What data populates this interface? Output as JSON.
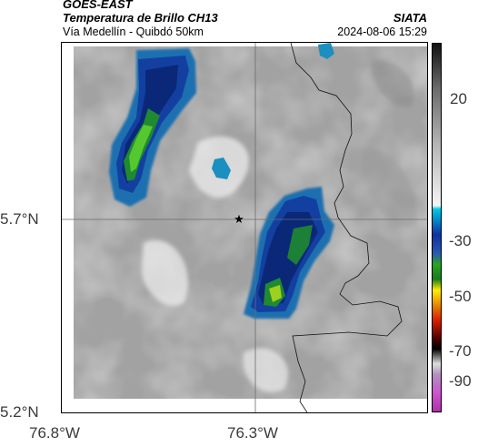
{
  "header": {
    "source": "GOES-EAST",
    "product": "Temperatura de Brillo CH13",
    "organization": "SIATA",
    "region": "Vía Medellín - Quibdó 50km",
    "datetime": "2024-08-06 15:29"
  },
  "map": {
    "lat_ticks": [
      "5.7°N",
      "5.2°N"
    ],
    "lon_ticks": [
      "76.8°W",
      "76.3°W"
    ],
    "marker": "station-star",
    "grid": true
  },
  "colorbar": {
    "ticks": [
      "20",
      "-30",
      "-50",
      "-70",
      "-90"
    ],
    "colors": {
      "warm_top": "#111111",
      "warm_bottom": "#f5f5f5",
      "cyan": "#00c8e6",
      "blue": "#1030a0",
      "green": "#2aa520",
      "yellow": "#ffee00",
      "red": "#dd2200",
      "black": "#000000",
      "magenta": "#cc55cc"
    }
  }
}
